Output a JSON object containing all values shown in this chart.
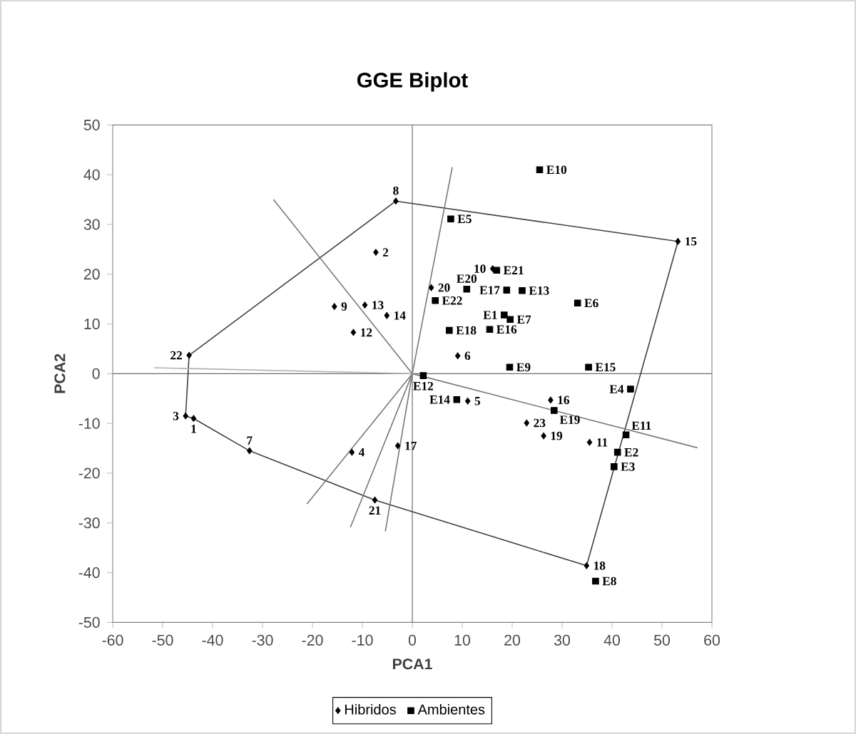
{
  "chart_data": {
    "type": "scatter",
    "title": "GGE Biplot",
    "xlabel": "PCA1",
    "ylabel": "PCA2",
    "xlim": [
      -60,
      60
    ],
    "ylim": [
      -50,
      50
    ],
    "xticks": [
      -60,
      -50,
      -40,
      -30,
      -20,
      -10,
      0,
      10,
      20,
      30,
      40,
      50,
      60
    ],
    "yticks": [
      -50,
      -40,
      -30,
      -20,
      -10,
      0,
      10,
      20,
      30,
      40,
      50
    ],
    "grid": false,
    "legend": "bottom",
    "ref_lines": [
      {
        "axis": "x",
        "value": 0,
        "color": "#808080"
      },
      {
        "axis": "y",
        "value": 0,
        "color": "#6e6e6e"
      }
    ],
    "series": [
      {
        "name": "Hibridos",
        "marker": "diamond",
        "color": "#000000",
        "x": [
          -43.8,
          -7.3,
          -45.4,
          -12.1,
          11.1,
          9.1,
          -32.6,
          -3.3,
          -15.6,
          16.1,
          35.5,
          -11.8,
          -9.5,
          -5.1,
          53.2,
          27.7,
          -2.9,
          34.9,
          26.3,
          3.8,
          -7.5,
          -44.7,
          22.9
        ],
        "values": [
          -9.0,
          24.4,
          -8.5,
          -15.8,
          -5.5,
          3.6,
          -15.5,
          34.7,
          13.5,
          21.1,
          -13.8,
          8.3,
          13.8,
          11.7,
          26.6,
          -5.3,
          -14.5,
          -38.6,
          -12.5,
          17.3,
          -25.4,
          3.7,
          -9.9
        ]
      },
      {
        "name": "Ambientes",
        "marker": "square",
        "color": "#000000",
        "x": [
          18.4,
          41.1,
          40.4,
          43.7,
          7.7,
          33.1,
          19.6,
          36.7,
          19.5,
          25.5,
          42.8,
          2.2,
          22.0,
          8.9,
          35.3,
          15.5,
          18.9,
          7.4,
          28.4,
          10.9,
          16.9,
          4.6
        ],
        "values": [
          11.8,
          -15.8,
          -18.7,
          -3.1,
          31.1,
          14.2,
          10.9,
          -41.7,
          1.3,
          41.0,
          -12.3,
          -0.4,
          16.7,
          -5.2,
          1.3,
          8.9,
          16.8,
          8.7,
          -7.4,
          17.0,
          20.8,
          14.7
        ]
      },
      {
        "type": "line",
        "marker": "none",
        "color": "#404040",
        "x": [
          -45.4,
          -44.7,
          -3.3,
          53.2
        ],
        "values": [
          -8.5,
          3.7,
          34.7,
          26.6
        ]
      },
      {
        "type": "line",
        "marker": "none",
        "color": "#404040",
        "x": [
          53.2,
          34.9,
          -7.5,
          -32.6,
          -43.8,
          -45.4
        ],
        "values": [
          26.6,
          -38.6,
          -25.4,
          -15.5,
          -9.0,
          -8.5
        ]
      },
      {
        "type": "line",
        "marker": "none",
        "color": "#787878",
        "x": [
          -5.4,
          0,
          8.0
        ],
        "values": [
          -31.7,
          0,
          41.5
        ]
      },
      {
        "type": "line",
        "marker": "none",
        "color": "#787878",
        "x": [
          -12.4,
          0,
          57.1
        ],
        "values": [
          -30.9,
          0,
          -14.9
        ]
      },
      {
        "type": "line",
        "marker": "none",
        "color": "#787878",
        "x": [
          -27.8,
          0
        ],
        "values": [
          35.0,
          0
        ]
      },
      {
        "type": "line",
        "marker": "none",
        "color": "#787878",
        "x": [
          -21.1,
          0
        ],
        "values": [
          -26.2,
          0
        ]
      },
      {
        "type": "line",
        "marker": "none",
        "color": "#b0b0b0",
        "x": [
          0,
          -51.7
        ],
        "values": [
          0,
          1.2
        ]
      }
    ],
    "annotations": [
      {
        "text": "1",
        "x": -43.8,
        "y": -9.0
      },
      {
        "text": "2",
        "x": -7.3,
        "y": 24.4
      },
      {
        "text": "3",
        "x": -45.4,
        "y": -8.5
      },
      {
        "text": "4",
        "x": -12.1,
        "y": -15.8
      },
      {
        "text": "5",
        "x": 11.1,
        "y": -5.5
      },
      {
        "text": "6",
        "x": 9.1,
        "y": 3.6
      },
      {
        "text": "7",
        "x": -32.6,
        "y": -15.5
      },
      {
        "text": "8",
        "x": -3.3,
        "y": 34.7
      },
      {
        "text": "9",
        "x": -15.6,
        "y": 13.5
      },
      {
        "text": "10",
        "x": 16.1,
        "y": 21.1
      },
      {
        "text": "11",
        "x": 35.5,
        "y": -13.8
      },
      {
        "text": "12",
        "x": -11.8,
        "y": 8.3
      },
      {
        "text": "13",
        "x": -9.5,
        "y": 13.8
      },
      {
        "text": "14",
        "x": -5.1,
        "y": 11.7
      },
      {
        "text": "15",
        "x": 53.2,
        "y": 26.6
      },
      {
        "text": "16",
        "x": 27.7,
        "y": -5.3
      },
      {
        "text": "17",
        "x": -2.9,
        "y": -14.5
      },
      {
        "text": "18",
        "x": 34.9,
        "y": -38.6
      },
      {
        "text": "19",
        "x": 26.3,
        "y": -12.5
      },
      {
        "text": "20",
        "x": 3.8,
        "y": 17.3
      },
      {
        "text": "21",
        "x": -7.5,
        "y": -25.4
      },
      {
        "text": "22",
        "x": -44.7,
        "y": 3.7
      },
      {
        "text": "23",
        "x": 22.9,
        "y": -9.9
      },
      {
        "text": "E1",
        "x": 18.4,
        "y": 11.8
      },
      {
        "text": "E2",
        "x": 41.1,
        "y": -15.8
      },
      {
        "text": "E3",
        "x": 40.4,
        "y": -18.7
      },
      {
        "text": "E4",
        "x": 43.7,
        "y": -3.1
      },
      {
        "text": "E5",
        "x": 7.7,
        "y": 31.1
      },
      {
        "text": "E6",
        "x": 33.1,
        "y": 14.2
      },
      {
        "text": "E7",
        "x": 19.6,
        "y": 10.9
      },
      {
        "text": "E8",
        "x": 36.7,
        "y": -41.7
      },
      {
        "text": "E9",
        "x": 19.5,
        "y": 1.3
      },
      {
        "text": "E10",
        "x": 25.5,
        "y": 41.0
      },
      {
        "text": "E11",
        "x": 42.8,
        "y": -12.3
      },
      {
        "text": "E12",
        "x": 2.2,
        "y": -0.4
      },
      {
        "text": "E13",
        "x": 22.0,
        "y": 16.7
      },
      {
        "text": "E14",
        "x": 8.9,
        "y": -5.2
      },
      {
        "text": "E15",
        "x": 35.3,
        "y": 1.3
      },
      {
        "text": "E16",
        "x": 15.5,
        "y": 8.9
      },
      {
        "text": "E17",
        "x": 18.9,
        "y": 16.8
      },
      {
        "text": "E18",
        "x": 7.4,
        "y": 8.7
      },
      {
        "text": "E19",
        "x": 28.4,
        "y": -7.4
      },
      {
        "text": "E20",
        "x": 10.9,
        "y": 17.0
      },
      {
        "text": "E21",
        "x": 16.9,
        "y": 20.8
      },
      {
        "text": "E22",
        "x": 4.6,
        "y": 14.7
      }
    ]
  }
}
